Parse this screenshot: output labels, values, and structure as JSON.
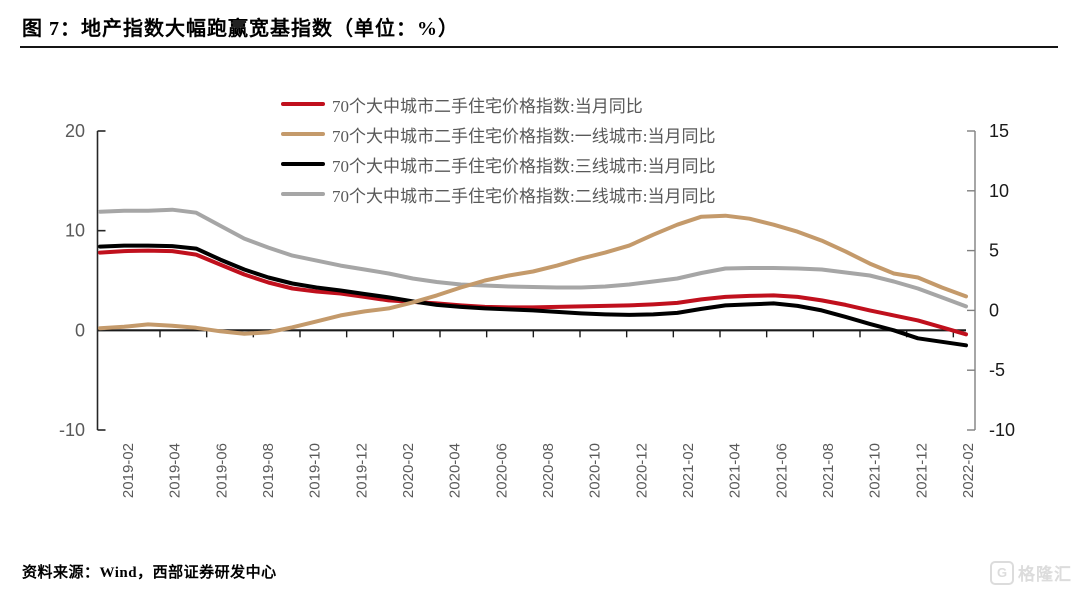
{
  "header": {
    "title": "图 7：地产指数大幅跑赢宽基指数（单位：%）"
  },
  "footer": {
    "source": "资料来源：Wind，西部证券研发中心",
    "watermark_icon": "G",
    "watermark_text": "格隆汇"
  },
  "colors": {
    "axis_line_left": "#262626",
    "axis_line_right": "#808080",
    "x_axis_line": "#1a1a1a",
    "axis_label_left": "#595959",
    "axis_label_right": "#1a1a1a",
    "x_label": "#595959",
    "legend_text": "#595959"
  },
  "chart_data": {
    "type": "line",
    "title": "图 7：地产指数大幅跑赢宽基指数（单位：%）",
    "unit": "%",
    "grid": false,
    "legend_position": "top",
    "left_axis": {
      "ticks": [
        20,
        10,
        0,
        -10
      ],
      "min": -10,
      "max": 20
    },
    "right_axis": {
      "ticks": [
        15,
        10,
        5,
        0,
        -5,
        -10
      ],
      "min": -10,
      "max": 15
    },
    "x_tick_labels": [
      "2019-02",
      "2019-04",
      "2019-06",
      "2019-08",
      "2019-10",
      "2019-12",
      "2020-02",
      "2020-04",
      "2020-06",
      "2020-08",
      "2020-10",
      "2020-12",
      "2021-02",
      "2021-04",
      "2021-06",
      "2021-08",
      "2021-10",
      "2021-12",
      "2022-02"
    ],
    "months": [
      "2019-02",
      "2019-03",
      "2019-04",
      "2019-05",
      "2019-06",
      "2019-07",
      "2019-08",
      "2019-09",
      "2019-10",
      "2019-11",
      "2019-12",
      "2020-01",
      "2020-02",
      "2020-03",
      "2020-04",
      "2020-05",
      "2020-06",
      "2020-07",
      "2020-08",
      "2020-09",
      "2020-10",
      "2020-11",
      "2020-12",
      "2021-01",
      "2021-02",
      "2021-03",
      "2021-04",
      "2021-05",
      "2021-06",
      "2021-07",
      "2021-08",
      "2021-09",
      "2021-10",
      "2021-11",
      "2021-12",
      "2022-01",
      "2022-02"
    ],
    "series": [
      {
        "name": "70个大中城市二手住宅价格指数:当月同比",
        "color": "#c0101d",
        "axis": "left",
        "values": [
          7.8,
          7.95,
          8.0,
          7.95,
          7.6,
          6.6,
          5.6,
          4.8,
          4.2,
          3.9,
          3.7,
          3.35,
          3.0,
          2.85,
          2.7,
          2.5,
          2.35,
          2.3,
          2.3,
          2.35,
          2.4,
          2.45,
          2.5,
          2.6,
          2.75,
          3.1,
          3.35,
          3.45,
          3.5,
          3.35,
          3.0,
          2.55,
          2.0,
          1.5,
          1.0,
          0.3,
          -0.4
        ]
      },
      {
        "name": "70个大中城市二手住宅价格指数:一线城市:当月同比",
        "color": "#c49a6b",
        "axis": "left",
        "values": [
          0.2,
          0.35,
          0.6,
          0.45,
          0.25,
          -0.1,
          -0.35,
          -0.2,
          0.3,
          0.9,
          1.5,
          1.9,
          2.2,
          2.8,
          3.5,
          4.3,
          5.0,
          5.5,
          5.9,
          6.5,
          7.2,
          7.8,
          8.5,
          9.6,
          10.6,
          11.4,
          11.5,
          11.2,
          10.6,
          9.9,
          9.0,
          7.9,
          6.7,
          5.7,
          5.3,
          4.3,
          3.4
        ]
      },
      {
        "name": "70个大中城市二手住宅价格指数:三线城市:当月同比",
        "color": "#000000",
        "axis": "left",
        "values": [
          8.4,
          8.5,
          8.5,
          8.45,
          8.2,
          7.1,
          6.1,
          5.3,
          4.7,
          4.3,
          4.0,
          3.65,
          3.3,
          2.9,
          2.55,
          2.35,
          2.2,
          2.1,
          2.0,
          1.85,
          1.7,
          1.6,
          1.55,
          1.6,
          1.75,
          2.15,
          2.5,
          2.6,
          2.7,
          2.45,
          2.0,
          1.35,
          0.65,
          0.0,
          -0.8,
          -1.15,
          -1.5
        ]
      },
      {
        "name": "70个大中城市二手住宅价格指数:二线城市:当月同比",
        "color": "#a6a6a6",
        "axis": "left",
        "values": [
          11.9,
          12.0,
          12.0,
          12.1,
          11.8,
          10.5,
          9.2,
          8.3,
          7.5,
          7.0,
          6.5,
          6.1,
          5.7,
          5.2,
          4.85,
          4.6,
          4.5,
          4.4,
          4.35,
          4.3,
          4.3,
          4.4,
          4.6,
          4.9,
          5.2,
          5.75,
          6.2,
          6.25,
          6.25,
          6.2,
          6.1,
          5.8,
          5.5,
          4.9,
          4.2,
          3.3,
          2.4
        ]
      }
    ]
  }
}
